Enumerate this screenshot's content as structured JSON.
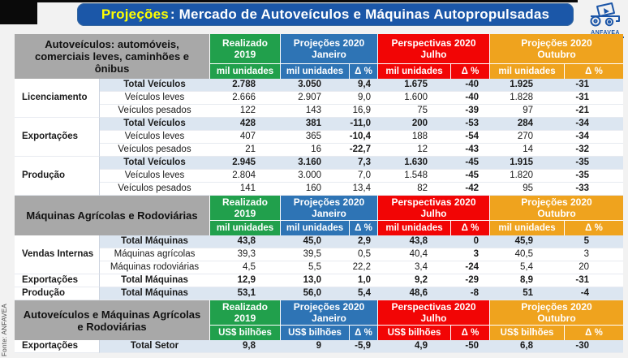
{
  "header": {
    "title_highlight": "Projeções",
    "title_rest": ": Mercado de Autoveículos e Máquinas Autopropulsadas",
    "logo_text": "ANFAVEA"
  },
  "footer": {
    "source": "Fonte: ANFAVEA"
  },
  "columns": {
    "realizado_title": "Realizado",
    "realizado_sub": "2019",
    "janeiro_title": "Projeções 2020",
    "janeiro_sub": "Janeiro",
    "julho_title": "Perspectivas 2020",
    "julho_sub": "Julho",
    "outubro_title": "Projeções 2020",
    "outubro_sub": "Outubro",
    "delta": "Δ %"
  },
  "sections": [
    {
      "label": "Autoveículos: automóveis, comerciais leves, caminhões e ônibus",
      "unit": "mil unidades",
      "rows": [
        {
          "group": "Licenciamento",
          "span": 3,
          "item": "Total Veículos",
          "bold": true,
          "shaded": true,
          "values": [
            "2.788",
            "3.050",
            "9,4",
            "1.675",
            "-40",
            "1.925",
            "-31"
          ],
          "red": [
            0,
            0,
            0,
            0,
            1,
            0,
            1
          ]
        },
        {
          "item": "Veículos leves",
          "values": [
            "2.666",
            "2.907",
            "9,0",
            "1.600",
            "-40",
            "1.828",
            "-31"
          ],
          "red": [
            0,
            0,
            0,
            0,
            1,
            0,
            1
          ]
        },
        {
          "item": "Veículos pesados",
          "values": [
            "122",
            "143",
            "16,9",
            "75",
            "-39",
            "97",
            "-21"
          ],
          "red": [
            0,
            0,
            0,
            0,
            1,
            0,
            1
          ]
        },
        {
          "group": "Exportações",
          "span": 3,
          "item": "Total Veículos",
          "bold": true,
          "shaded": true,
          "values": [
            "428",
            "381",
            "-11,0",
            "200",
            "-53",
            "284",
            "-34"
          ],
          "red": [
            0,
            0,
            1,
            0,
            1,
            0,
            1
          ]
        },
        {
          "item": "Veículos leves",
          "values": [
            "407",
            "365",
            "-10,4",
            "188",
            "-54",
            "270",
            "-34"
          ],
          "red": [
            0,
            0,
            1,
            0,
            1,
            0,
            1
          ]
        },
        {
          "item": "Veículos pesados",
          "values": [
            "21",
            "16",
            "-22,7",
            "12",
            "-43",
            "14",
            "-32"
          ],
          "red": [
            0,
            0,
            1,
            0,
            1,
            0,
            1
          ]
        },
        {
          "group": "Produção",
          "span": 3,
          "item": "Total Veículos",
          "bold": true,
          "shaded": true,
          "values": [
            "2.945",
            "3.160",
            "7,3",
            "1.630",
            "-45",
            "1.915",
            "-35"
          ],
          "red": [
            0,
            0,
            0,
            0,
            1,
            0,
            1
          ]
        },
        {
          "item": "Veículos leves",
          "values": [
            "2.804",
            "3.000",
            "7,0",
            "1.548",
            "-45",
            "1.820",
            "-35"
          ],
          "red": [
            0,
            0,
            0,
            0,
            1,
            0,
            1
          ]
        },
        {
          "item": "Veículos pesados",
          "values": [
            "141",
            "160",
            "13,4",
            "82",
            "-42",
            "95",
            "-33"
          ],
          "red": [
            0,
            0,
            0,
            0,
            1,
            0,
            1
          ]
        }
      ]
    },
    {
      "label": "Máquinas Agrícolas e Rodoviárias",
      "unit": "mil unidades",
      "rows": [
        {
          "group": "Vendas Internas",
          "span": 3,
          "item": "Total Máquinas",
          "bold": true,
          "shaded": true,
          "values": [
            "43,8",
            "45,0",
            "2,9",
            "43,8",
            "0",
            "45,9",
            "5"
          ],
          "red": [
            0,
            0,
            0,
            0,
            1,
            0,
            0
          ]
        },
        {
          "item": "Máquinas agrícolas",
          "values": [
            "39,3",
            "39,5",
            "0,5",
            "40,4",
            "3",
            "40,5",
            "3"
          ],
          "red": [
            0,
            0,
            0,
            0,
            1,
            0,
            0
          ]
        },
        {
          "item": "Máquinas rodoviárias",
          "values": [
            "4,5",
            "5,5",
            "22,2",
            "3,4",
            "-24",
            "5,4",
            "20"
          ],
          "red": [
            0,
            0,
            0,
            0,
            1,
            0,
            0
          ]
        },
        {
          "group": "Exportações",
          "span": 1,
          "item": "Total Máquinas",
          "bold": true,
          "values": [
            "12,9",
            "13,0",
            "1,0",
            "9,2",
            "-29",
            "8,9",
            "-31"
          ],
          "red": [
            0,
            0,
            0,
            0,
            1,
            0,
            1
          ]
        },
        {
          "group": "Produção",
          "span": 1,
          "item": "Total Máquinas",
          "bold": true,
          "shaded": true,
          "values": [
            "53,1",
            "56,0",
            "5,4",
            "48,6",
            "-8",
            "51",
            "-4"
          ],
          "red": [
            0,
            0,
            0,
            0,
            1,
            0,
            1
          ]
        }
      ]
    },
    {
      "label": "Autoveículos e Máquinas Agrícolas e Rodoviárias",
      "unit": "US$ bilhões",
      "rows": [
        {
          "group": "Exportações",
          "span": 1,
          "item": "Total Setor",
          "bold": true,
          "shaded": true,
          "values": [
            "9,8",
            "9",
            "-5,9",
            "4,9",
            "-50",
            "6,8",
            "-30"
          ],
          "red": [
            0,
            0,
            0,
            0,
            1,
            0,
            1
          ]
        }
      ]
    }
  ],
  "colors": {
    "green": "#21a04c",
    "blue": "#2e74b5",
    "red": "#f20505",
    "orange": "#efa31e",
    "gray": "#a8a8a8",
    "shade": "#dce6f1",
    "negative": "#ff0000",
    "title_bg": "#1b57a8",
    "title_highlight": "#ffff00"
  }
}
